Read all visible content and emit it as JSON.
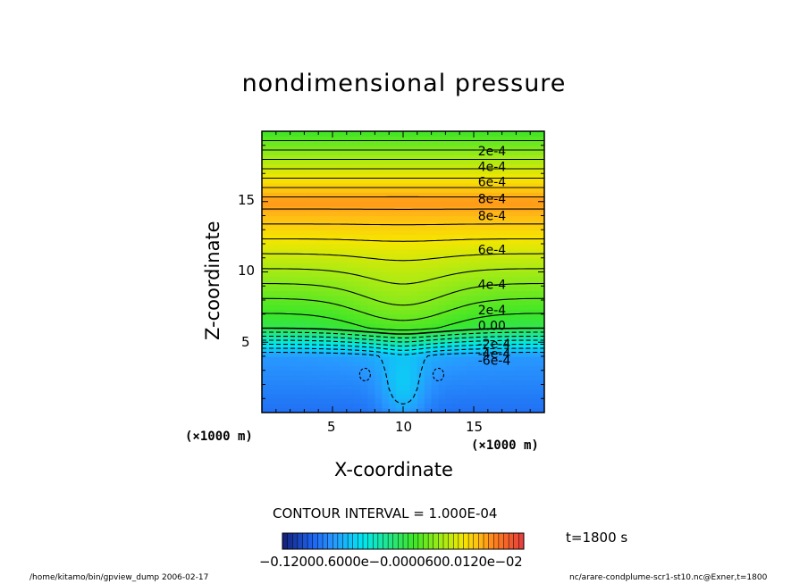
{
  "chart_data": {
    "type": "heatmap",
    "title": "nondimensional pressure",
    "xlabel": "X-coordinate",
    "ylabel": "Z-coordinate",
    "x_unit": "(×1000 m)",
    "y_unit": "(×1000 m)",
    "xlim": [
      0,
      20
    ],
    "ylim": [
      0,
      20
    ],
    "x_ticks": [
      5,
      10,
      15
    ],
    "y_ticks": [
      5,
      10,
      15
    ],
    "contour_interval": "CONTOUR INTERVAL = 1.000E-04",
    "contour_labels": [
      {
        "text": "2e-4",
        "x": 15.3,
        "z": 18.6
      },
      {
        "text": "4e-4",
        "x": 15.3,
        "z": 17.5
      },
      {
        "text": "6e-4",
        "x": 15.3,
        "z": 16.4
      },
      {
        "text": "8e-4",
        "x": 15.3,
        "z": 15.2
      },
      {
        "text": "8e-4",
        "x": 15.3,
        "z": 14.0
      },
      {
        "text": "6e-4",
        "x": 15.3,
        "z": 11.6
      },
      {
        "text": "4e-4",
        "x": 15.3,
        "z": 9.1
      },
      {
        "text": "2e-4",
        "x": 15.3,
        "z": 7.3
      },
      {
        "text": "0.00",
        "x": 15.3,
        "z": 6.2
      },
      {
        "text": "-2e-4",
        "x": 15.3,
        "z": 4.9
      },
      {
        "text": "-4e-4",
        "x": 15.3,
        "z": 4.2
      },
      {
        "text": "-6e-4",
        "x": 15.3,
        "z": 3.7
      }
    ],
    "contour_levels": [
      -0.0006,
      -0.0005,
      -0.0004,
      -0.0003,
      -0.0002,
      -0.0001,
      0.0,
      0.0001,
      0.0002,
      0.0003,
      0.0004,
      0.0005,
      0.0006,
      0.0007,
      0.0008
    ],
    "colorbar": {
      "min": -0.0012,
      "max": 0.0012,
      "tick_labels": [
        "-0.1200e-02",
        "-0.6000e-03",
        "0.0000",
        "0.6000e-03",
        "0.1200e-02"
      ],
      "tick_text": "−0.12000.6000e−0.0000600.0120e−02"
    },
    "colors": {
      "deep_low": "#1e90ff",
      "cyan": "#00e5ee",
      "green": "#2ee82e",
      "yellow": "#f5e600",
      "orange": "#ff8c1a"
    }
  },
  "time_label": "t=1800 s",
  "footer": {
    "left": "/home/kitamo/bin/gpview_dump  2006-02-17",
    "right": "nc/arare-condplume-scr1-st10.nc@Exner,t=1800"
  }
}
